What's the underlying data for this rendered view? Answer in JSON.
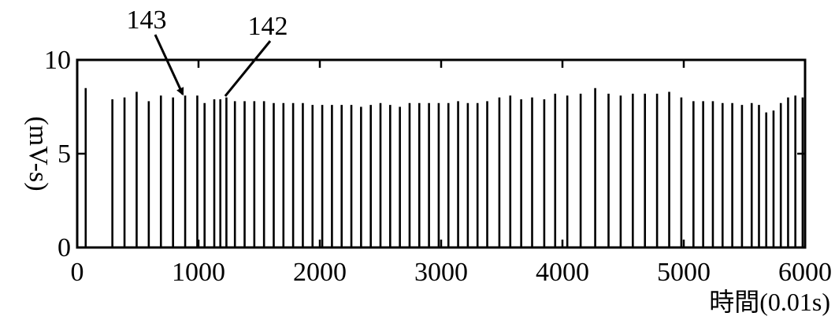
{
  "chart_data": {
    "type": "bar",
    "xlabel": "時間(0.01s)",
    "ylabel": "(mV-s)",
    "xlim": [
      0,
      6000
    ],
    "ylim": [
      0,
      10
    ],
    "xticks": [
      0,
      1000,
      2000,
      3000,
      4000,
      5000,
      6000
    ],
    "yticks": [
      0,
      5,
      10
    ],
    "grid": false,
    "annotations": [
      {
        "text": "143",
        "target_x": 870,
        "target_y": 8.0
      },
      {
        "text": "142",
        "target_x": 1220,
        "target_y": 7.9
      }
    ],
    "x": [
      70,
      290,
      390,
      490,
      590,
      690,
      790,
      890,
      990,
      1050,
      1130,
      1180,
      1230,
      1300,
      1380,
      1460,
      1540,
      1620,
      1700,
      1780,
      1860,
      1940,
      2020,
      2100,
      2180,
      2260,
      2340,
      2420,
      2500,
      2580,
      2660,
      2740,
      2820,
      2900,
      2980,
      3060,
      3140,
      3220,
      3300,
      3380,
      3480,
      3570,
      3660,
      3750,
      3850,
      3940,
      4040,
      4150,
      4270,
      4380,
      4480,
      4580,
      4680,
      4780,
      4880,
      4980,
      5080,
      5160,
      5240,
      5320,
      5400,
      5480,
      5560,
      5620,
      5680,
      5740,
      5800,
      5860,
      5920,
      5980
    ],
    "values": [
      8.5,
      7.9,
      8.0,
      8.3,
      7.8,
      8.1,
      8.0,
      8.1,
      8.1,
      7.7,
      7.9,
      7.9,
      8.0,
      7.8,
      7.8,
      7.8,
      7.8,
      7.7,
      7.7,
      7.7,
      7.7,
      7.6,
      7.6,
      7.6,
      7.6,
      7.6,
      7.5,
      7.6,
      7.7,
      7.6,
      7.5,
      7.7,
      7.7,
      7.7,
      7.7,
      7.7,
      7.8,
      7.7,
      7.7,
      7.8,
      8.0,
      8.1,
      7.9,
      8.0,
      7.9,
      8.2,
      8.1,
      8.2,
      8.5,
      8.2,
      8.1,
      8.2,
      8.2,
      8.2,
      8.3,
      8.0,
      7.8,
      7.8,
      7.8,
      7.7,
      7.7,
      7.6,
      7.7,
      7.6,
      7.2,
      7.3,
      7.7,
      8.0,
      8.1,
      8.0
    ]
  }
}
